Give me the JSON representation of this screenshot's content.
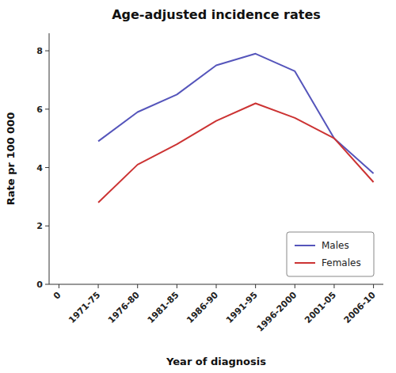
{
  "chart_data": {
    "type": "line",
    "title": "Age-adjusted incidence rates",
    "x_label": "Year of diagnosis",
    "y_label": "Rate pr 100 000",
    "categories": [
      "0",
      "1971-75",
      "1976-80",
      "1981-85",
      "1986-90",
      "1991-95",
      "1996-2000",
      "2001-05",
      "2006-10"
    ],
    "series": [
      {
        "name": "Males",
        "color": "#5555bb",
        "values": [
          null,
          4.9,
          5.9,
          6.5,
          7.5,
          7.9,
          7.3,
          5.0,
          3.8
        ]
      },
      {
        "name": "Females",
        "color": "#cc3333",
        "values": [
          null,
          2.8,
          4.1,
          4.8,
          5.6,
          6.2,
          5.7,
          5.0,
          3.5
        ]
      }
    ],
    "ylim": [
      0,
      8.6
    ],
    "yticks": [
      0,
      2,
      4,
      6,
      8
    ],
    "grid": false,
    "legend": "lower right"
  }
}
